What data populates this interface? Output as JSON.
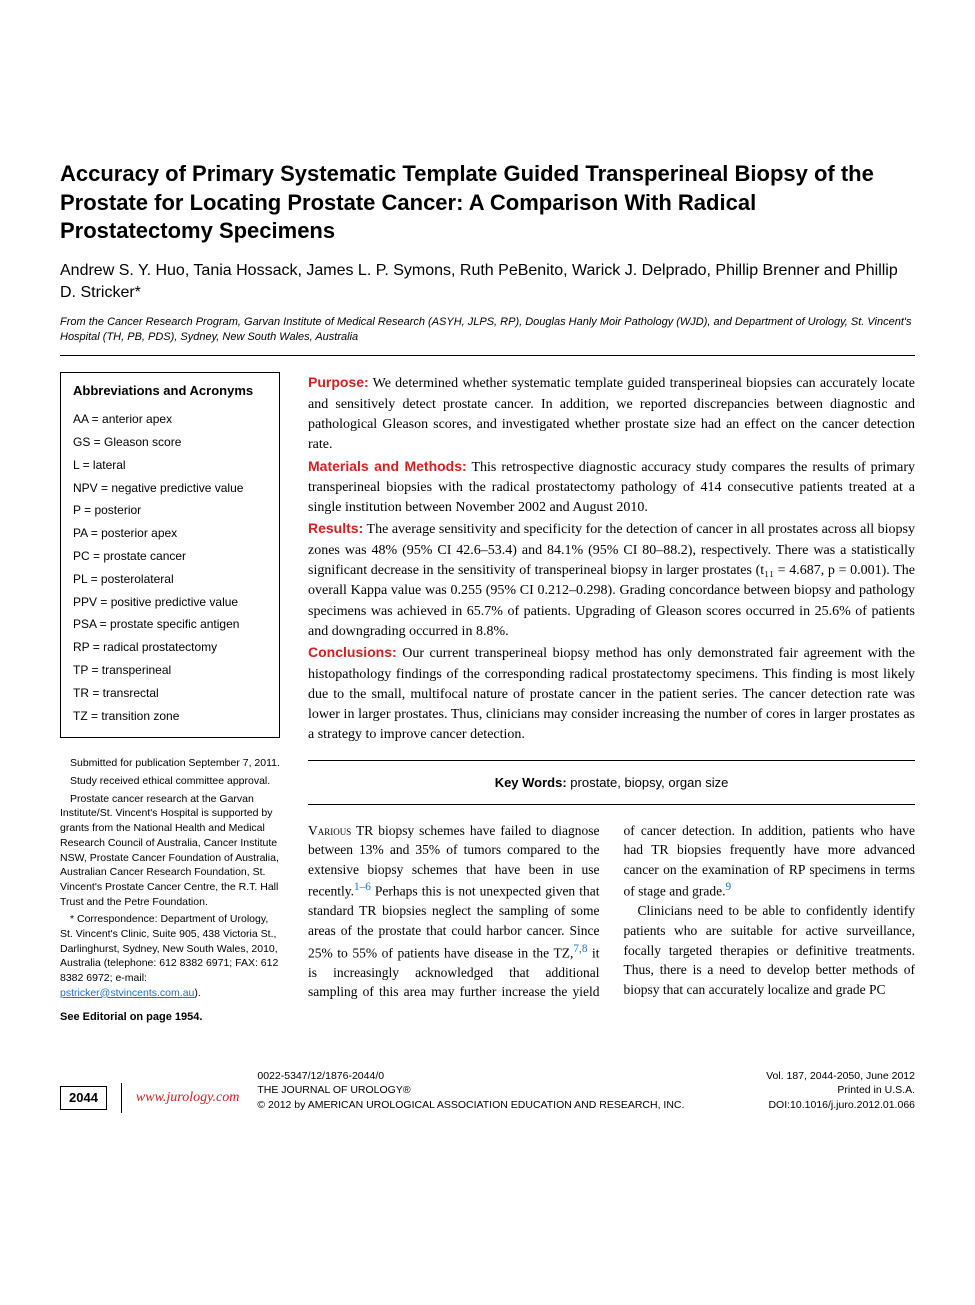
{
  "title": "Accuracy of Primary Systematic Template Guided Transperineal Biopsy of the Prostate for Locating Prostate Cancer: A Comparison With Radical Prostatectomy Specimens",
  "authors": "Andrew S. Y. Huo, Tania Hossack, James L. P. Symons, Ruth PeBenito, Warick J. Delprado, Phillip Brenner and Phillip D. Stricker*",
  "affiliation": "From the Cancer Research Program, Garvan Institute of Medical Research (ASYH, JLPS, RP), Douglas Hanly Moir Pathology (WJD), and Department of Urology, St. Vincent's Hospital (TH, PB, PDS), Sydney, New South Wales, Australia",
  "abbrev": {
    "heading": "Abbreviations and Acronyms",
    "items": [
      "AA = anterior apex",
      "GS = Gleason score",
      "L = lateral",
      "NPV = negative predictive value",
      "P = posterior",
      "PA = posterior apex",
      "PC = prostate cancer",
      "PL = posterolateral",
      "PPV = positive predictive value",
      "PSA = prostate specific antigen",
      "RP = radical prostatectomy",
      "TP = transperineal",
      "TR = transrectal",
      "TZ = transition zone"
    ]
  },
  "sidebar_notes": {
    "n1": "Submitted for publication September 7, 2011.",
    "n2": "Study received ethical committee approval.",
    "n3": "Prostate cancer research at the Garvan Institute/St. Vincent's Hospital is supported by grants from the National Health and Medical Research Council of Australia, Cancer Institute NSW, Prostate Cancer Foundation of Australia, Australian Cancer Research Foundation, St. Vincent's Prostate Cancer Centre, the R.T. Hall Trust and the Petre Foundation.",
    "n4_prefix": "* Correspondence: Department of Urology, St. Vincent's Clinic, Suite 905, 438 Victoria St., Darlinghurst, Sydney, New South Wales, 2010, Australia (telephone: 612 8382 6971; FAX: 612 8382 6972; e-mail: ",
    "n4_email": "pstricker@stvincents.com.au",
    "n4_suffix": ").",
    "editorial": "See Editorial on page 1954."
  },
  "abstract": {
    "purpose_label": "Purpose:",
    "purpose": " We determined whether systematic template guided transperineal biopsies can accurately locate and sensitively detect prostate cancer. In addition, we reported discrepancies between diagnostic and pathological Gleason scores, and investigated whether prostate size had an effect on the cancer detection rate.",
    "methods_label": "Materials and Methods:",
    "methods": " This retrospective diagnostic accuracy study compares the results of primary transperineal biopsies with the radical prostatectomy pathology of 414 consecutive patients treated at a single institution between November 2002 and August 2010.",
    "results_label": "Results:",
    "results": " The average sensitivity and specificity for the detection of cancer in all prostates across all biopsy zones was 48% (95% CI 42.6–53.4) and 84.1% (95% CI 80–88.2), respectively. There was a statistically significant decrease in the sensitivity of transperineal biopsy in larger prostates (t₁₁ = 4.687, p = 0.001). The overall Kappa value was 0.255 (95% CI 0.212–0.298). Grading concordance between biopsy and pathology specimens was achieved in 65.7% of patients. Upgrading of Gleason scores occurred in 25.6% of patients and downgrading occurred in 8.8%.",
    "conclusions_label": "Conclusions:",
    "conclusions": " Our current transperineal biopsy method has only demonstrated fair agreement with the histopathology findings of the corresponding radical prostatectomy specimens. This finding is most likely due to the small, multifocal nature of prostate cancer in the patient series. The cancer detection rate was lower in larger prostates. Thus, clinicians may consider increasing the number of cores in larger prostates as a strategy to improve cancer detection."
  },
  "keywords": {
    "label": "Key Words:",
    "text": " prostate, biopsy, organ size"
  },
  "body": {
    "p1a": "Various",
    "p1b": " TR biopsy schemes have failed to diagnose between 13% and 35% of tumors compared to the extensive biopsy schemes that have been in use recently.",
    "c1": "1–6",
    "p1c": " Perhaps this is not unexpected given that standard TR biopsies neglect the sampling of some areas of the prostate that could harbor cancer. Since 25% to 55% of patients have disease in the TZ,",
    "c2": "7,8",
    "p1d": " it is increasingly acknowledged that additional sampling of this area may further increase the yield of cancer detection. In addition, patients who have had TR biopsies frequently have more advanced cancer on the examination of RP specimens in terms of stage and grade.",
    "c3": "9",
    "p2": "Clinicians need to be able to confidently identify patients who are suitable for active surveillance, focally targeted therapies or definitive treatments. Thus, there is a need to develop better methods of biopsy that can accurately localize and grade PC"
  },
  "footer": {
    "page": "2044",
    "url": "www.jurology.com",
    "issn": "0022-5347/12/1876-2044/0",
    "journal": "THE JOURNAL OF UROLOGY®",
    "copyright": "© 2012 by AMERICAN UROLOGICAL ASSOCIATION EDUCATION AND RESEARCH, INC.",
    "vol": "Vol. 187, 2044-2050, June 2012",
    "printed": "Printed in U.S.A.",
    "doi": "DOI:10.1016/j.juro.2012.01.066"
  },
  "colors": {
    "heading_red": "#d62020",
    "link_blue": "#1a73cc",
    "text": "#000000",
    "background": "#ffffff"
  }
}
